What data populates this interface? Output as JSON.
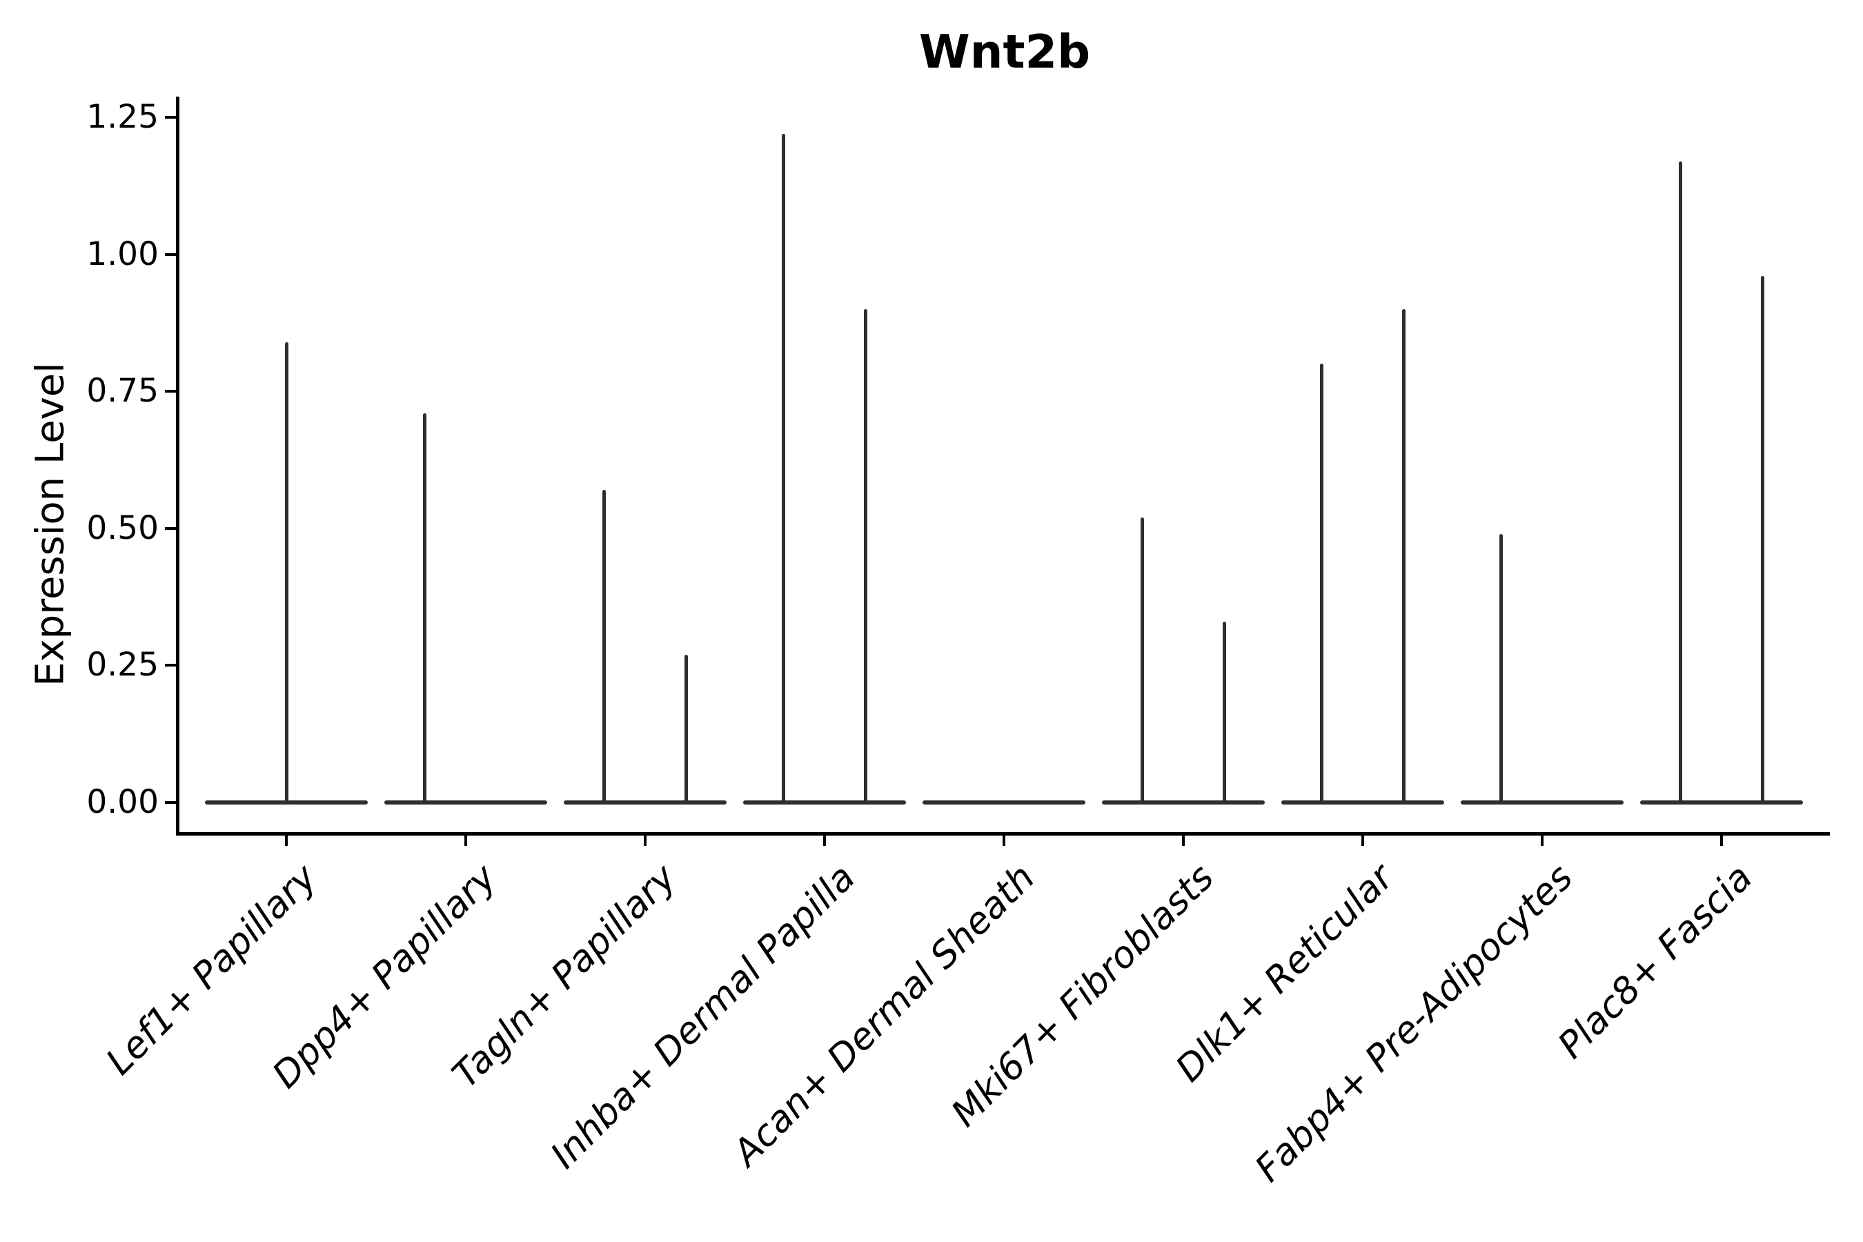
{
  "chart_data": {
    "type": "violin",
    "title": "Wnt2b",
    "xlabel": "",
    "ylabel": "Expression Level",
    "ytick_labels": [
      "0.00",
      "0.25",
      "0.50",
      "0.75",
      "1.00",
      "1.25"
    ],
    "ytick_values": [
      0,
      0.25,
      0.5,
      0.75,
      1.0,
      1.25
    ],
    "ylim": [
      -0.06,
      1.29
    ],
    "grid": false,
    "legend": "none",
    "categories": [
      "Lef1+ Papillary",
      "Dpp4+ Papillary",
      "Tagln+ Papillary",
      "Inhba+ Dermal Papilla",
      "Acan+ Dermal Sheath",
      "Mki67+ Fibroblasts",
      "Dlk1+ Reticular",
      "Fabp4+ Pre-Adipocytes",
      "Plac8+ Fascia"
    ],
    "violins": [
      {
        "category": "Lef1+ Papillary",
        "groups": [
          {
            "pos": "center",
            "max_expression": 0.84
          }
        ]
      },
      {
        "category": "Dpp4+ Papillary",
        "groups": [
          {
            "pos": "left",
            "max_expression": 0.71
          },
          {
            "pos": "right",
            "max_expression": 0
          }
        ]
      },
      {
        "category": "Tagln+ Papillary",
        "groups": [
          {
            "pos": "left",
            "max_expression": 0.57
          },
          {
            "pos": "right",
            "max_expression": 0.27
          }
        ]
      },
      {
        "category": "Inhba+ Dermal Papilla",
        "groups": [
          {
            "pos": "left",
            "max_expression": 1.22
          },
          {
            "pos": "right",
            "max_expression": 0.9
          }
        ]
      },
      {
        "category": "Acan+ Dermal Sheath",
        "groups": [
          {
            "pos": "center",
            "max_expression": 0
          }
        ]
      },
      {
        "category": "Mki67+ Fibroblasts",
        "groups": [
          {
            "pos": "left",
            "max_expression": 0.52
          },
          {
            "pos": "right",
            "max_expression": 0.33
          }
        ]
      },
      {
        "category": "Dlk1+ Reticular",
        "groups": [
          {
            "pos": "left",
            "max_expression": 0.8
          },
          {
            "pos": "right",
            "max_expression": 0.9
          }
        ]
      },
      {
        "category": "Fabp4+ Pre-Adipocytes",
        "groups": [
          {
            "pos": "left",
            "max_expression": 0.49
          },
          {
            "pos": "right",
            "max_expression": 0
          }
        ]
      },
      {
        "category": "Plac8+ Fascia",
        "groups": [
          {
            "pos": "left",
            "max_expression": 1.17
          },
          {
            "pos": "right",
            "max_expression": 0.96
          }
        ]
      }
    ],
    "colors": {
      "violin_stroke": "#2e2e2e",
      "axis": "#000000",
      "text": "#000000",
      "background": "#ffffff"
    },
    "layout_hints": {
      "x_label_rotation_deg": 45,
      "x_labels_italic": true,
      "legend_position": "none"
    }
  }
}
